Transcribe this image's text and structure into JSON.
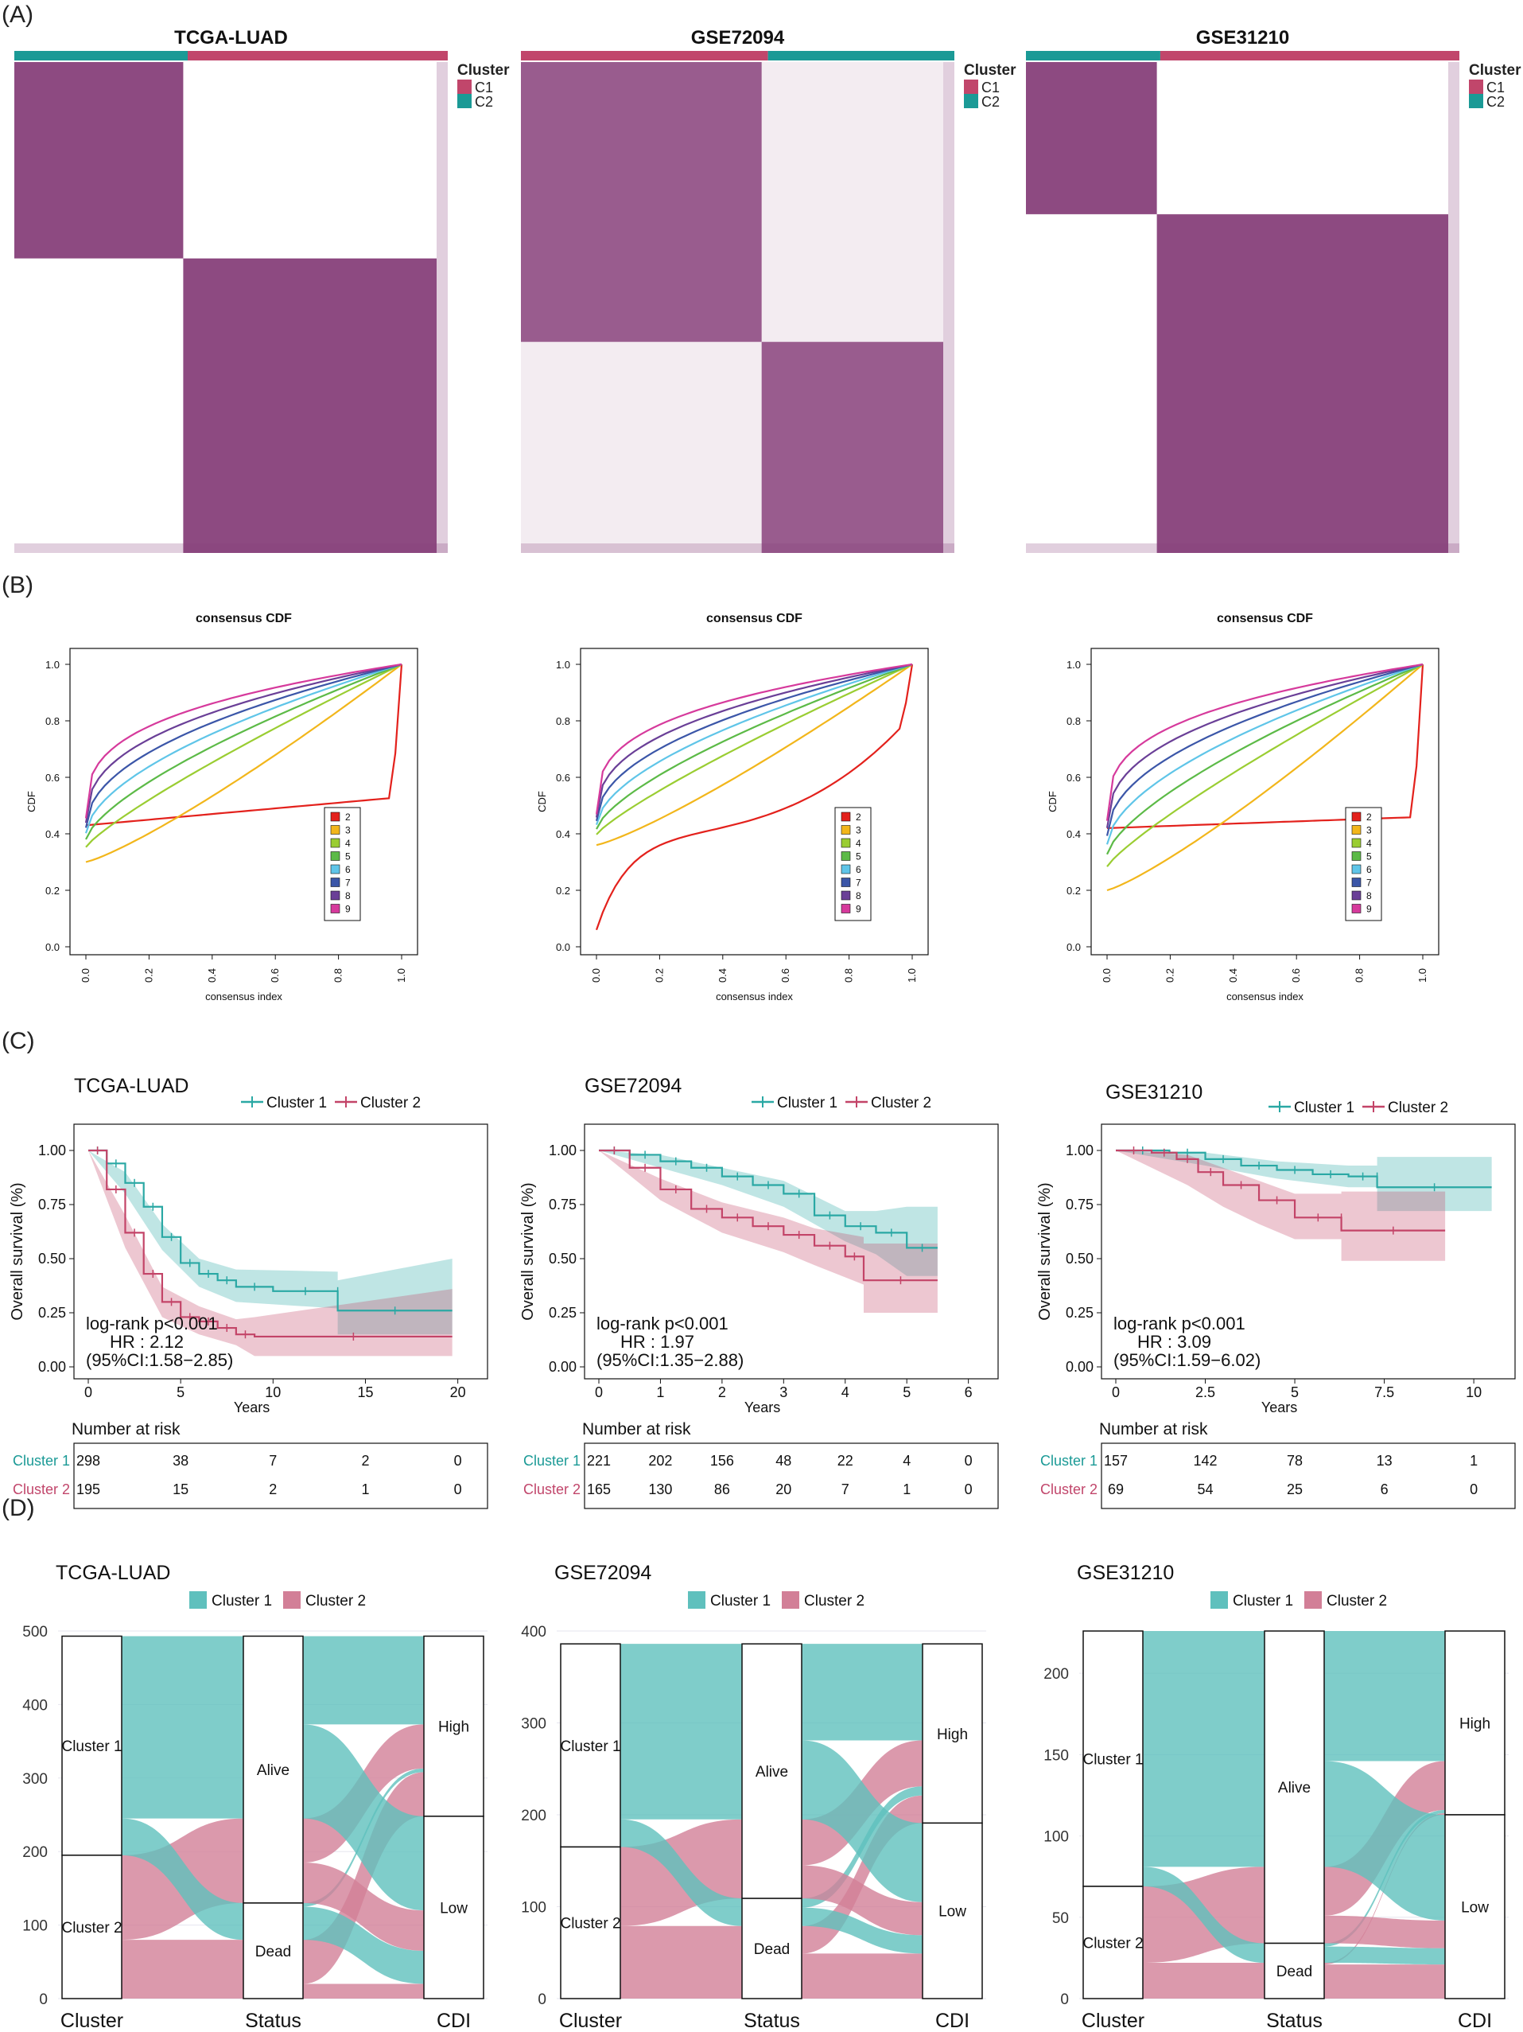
{
  "panel_labels": [
    "(A)",
    "(B)",
    "(C)",
    "(D)"
  ],
  "colors": {
    "c1_red": "#c1466b",
    "c2_teal": "#1b9a96",
    "heat": "#87407a",
    "km_c1": "#2aa8a4",
    "km_c2": "#c34468",
    "alluvial_c1": "#5fc0bd",
    "alluvial_c2": "#d27f97"
  },
  "chart_data": [
    {
      "type": "heatmap",
      "panel": "A",
      "datasets": [
        "TCGA-LUAD",
        "GSE72094",
        "GSE31210"
      ],
      "legend_title": "Cluster",
      "legend_items": [
        "C1",
        "C2"
      ],
      "cluster_sizes": [
        [
          298,
          195
        ],
        [
          221,
          165
        ],
        [
          157,
          69
        ]
      ]
    },
    {
      "type": "line",
      "panel": "B",
      "title": "consensus CDF",
      "xlabel": "consensus index",
      "ylabel": "CDF",
      "xlim": [
        0,
        1
      ],
      "ylim": [
        0,
        1
      ],
      "x_ticks": [
        "0.0",
        "0.2",
        "0.4",
        "0.6",
        "0.8",
        "1.0"
      ],
      "y_ticks": [
        "0.0",
        "0.2",
        "0.4",
        "0.6",
        "0.8",
        "1.0"
      ],
      "legend": [
        "2",
        "3",
        "4",
        "5",
        "6",
        "7",
        "8",
        "9"
      ],
      "series_colors": [
        "#e3211c",
        "#f2b61b",
        "#9acd32",
        "#5cba47",
        "#5fc5e8",
        "#3b56a8",
        "#6a3f97",
        "#d63a9c"
      ],
      "plots": [
        {
          "k2_start": 0.43,
          "k2_flat_end": 0.53,
          "k3_start": 0.3,
          "k9_start": 0.47,
          "k_start_spread": 0.02
        },
        {
          "k2_start": 0.06,
          "k2_flat_end": 0.82,
          "k3_start": 0.36,
          "k9_start": 0.48,
          "k_start_spread": 0.015
        },
        {
          "k2_start": 0.42,
          "k2_flat_end": 0.46,
          "k3_start": 0.2,
          "k9_start": 0.47,
          "k_start_spread": 0.03
        }
      ]
    },
    {
      "type": "line",
      "panel": "C",
      "ylabel": "Overall survival (%)",
      "xlabel": "Years",
      "legend": [
        "Cluster 1",
        "Cluster 2"
      ],
      "risk_title": "Number at risk",
      "risk_labels": [
        "Cluster 1",
        "Cluster 2"
      ],
      "y_ticks": [
        "0.00",
        "0.25",
        "0.50",
        "0.75",
        "1.00"
      ],
      "plots": [
        {
          "title": "TCGA-LUAD",
          "xlim": [
            0,
            20
          ],
          "x_ticks": [
            "0",
            "5",
            "10",
            "15",
            "20"
          ],
          "stats": [
            "log-rank  p<0.001",
            "HR : 2.12",
            "(95%CI:1.58−2.85)"
          ],
          "c1": [
            [
              0,
              1.0
            ],
            [
              1,
              0.94
            ],
            [
              2,
              0.85
            ],
            [
              3,
              0.74
            ],
            [
              4,
              0.6
            ],
            [
              5,
              0.48
            ],
            [
              6,
              0.43
            ],
            [
              7,
              0.4
            ],
            [
              8,
              0.37
            ],
            [
              10,
              0.35
            ],
            [
              13.5,
              0.35
            ],
            [
              13.5,
              0.26
            ],
            [
              19.7,
              0.26
            ]
          ],
          "c1_band": [
            [
              0,
              1,
              1
            ],
            [
              2,
              0.8,
              0.9
            ],
            [
              4,
              0.54,
              0.66
            ],
            [
              6,
              0.37,
              0.5
            ],
            [
              8,
              0.3,
              0.45
            ],
            [
              13.5,
              0.27,
              0.44
            ],
            [
              13.5,
              0.15,
              0.4
            ],
            [
              19.7,
              0.15,
              0.5
            ]
          ],
          "c2": [
            [
              0,
              1.0
            ],
            [
              1,
              0.82
            ],
            [
              2,
              0.62
            ],
            [
              3,
              0.43
            ],
            [
              4,
              0.3
            ],
            [
              5,
              0.23
            ],
            [
              6,
              0.21
            ],
            [
              7,
              0.18
            ],
            [
              8,
              0.15
            ],
            [
              9,
              0.14
            ],
            [
              19.7,
              0.14
            ]
          ],
          "c2_band": [
            [
              0,
              1,
              1
            ],
            [
              2,
              0.55,
              0.7
            ],
            [
              4,
              0.23,
              0.37
            ],
            [
              6,
              0.15,
              0.28
            ],
            [
              8,
              0.1,
              0.22
            ],
            [
              9,
              0.05,
              0.23
            ],
            [
              19.7,
              0.05,
              0.36
            ]
          ],
          "risk_c1": [
            "298",
            "38",
            "7",
            "2",
            "0"
          ],
          "risk_c2": [
            "195",
            "15",
            "2",
            "1",
            "0"
          ]
        },
        {
          "title": "GSE72094",
          "xlim": [
            0,
            6
          ],
          "x_ticks": [
            "0",
            "1",
            "2",
            "3",
            "4",
            "5",
            "6"
          ],
          "stats": [
            "log-rank  p<0.001",
            "HR : 1.97",
            "(95%CI:1.35−2.88)"
          ],
          "c1": [
            [
              0,
              1.0
            ],
            [
              0.5,
              0.98
            ],
            [
              1,
              0.95
            ],
            [
              1.5,
              0.92
            ],
            [
              2,
              0.88
            ],
            [
              2.5,
              0.84
            ],
            [
              3,
              0.8
            ],
            [
              3.5,
              0.7
            ],
            [
              4,
              0.65
            ],
            [
              4.5,
              0.62
            ],
            [
              5,
              0.55
            ],
            [
              5.5,
              0.55
            ]
          ],
          "c1_band": [
            [
              0,
              1,
              1
            ],
            [
              1,
              0.92,
              0.98
            ],
            [
              2,
              0.84,
              0.92
            ],
            [
              3,
              0.74,
              0.86
            ],
            [
              4,
              0.58,
              0.72
            ],
            [
              4.5,
              0.52,
              0.72
            ],
            [
              5,
              0.42,
              0.74
            ],
            [
              5.5,
              0.42,
              0.74
            ]
          ],
          "c2": [
            [
              0,
              1.0
            ],
            [
              0.5,
              0.92
            ],
            [
              1,
              0.82
            ],
            [
              1.5,
              0.73
            ],
            [
              2,
              0.69
            ],
            [
              2.5,
              0.65
            ],
            [
              3,
              0.61
            ],
            [
              3.5,
              0.56
            ],
            [
              4,
              0.51
            ],
            [
              4.3,
              0.48
            ],
            [
              4.3,
              0.4
            ],
            [
              5.5,
              0.4
            ]
          ],
          "c2_band": [
            [
              0,
              1,
              1
            ],
            [
              1,
              0.77,
              0.87
            ],
            [
              2,
              0.62,
              0.76
            ],
            [
              3,
              0.53,
              0.69
            ],
            [
              3.5,
              0.47,
              0.64
            ],
            [
              4.3,
              0.38,
              0.6
            ],
            [
              4.3,
              0.25,
              0.57
            ],
            [
              5.5,
              0.25,
              0.57
            ]
          ],
          "risk_c1": [
            "221",
            "202",
            "156",
            "48",
            "22",
            "4",
            "0"
          ],
          "risk_c2": [
            "165",
            "130",
            "86",
            "20",
            "7",
            "1",
            "0"
          ]
        },
        {
          "title": "GSE31210",
          "xlim": [
            0,
            10
          ],
          "x_ticks": [
            "0",
            "2.5",
            "5",
            "7.5",
            "10"
          ],
          "stats": [
            "log-rank  p<0.001",
            "HR : 3.09",
            "(95%CI:1.59−6.02)"
          ],
          "c1": [
            [
              0,
              1.0
            ],
            [
              1.5,
              0.99
            ],
            [
              2.5,
              0.96
            ],
            [
              3.5,
              0.93
            ],
            [
              4.5,
              0.91
            ],
            [
              5.5,
              0.89
            ],
            [
              6.5,
              0.88
            ],
            [
              7.3,
              0.88
            ],
            [
              7.3,
              0.83
            ],
            [
              10.5,
              0.83
            ]
          ],
          "c1_band": [
            [
              0,
              1,
              1
            ],
            [
              2.5,
              0.93,
              0.99
            ],
            [
              4.5,
              0.87,
              0.95
            ],
            [
              6.5,
              0.83,
              0.93
            ],
            [
              7.3,
              0.83,
              0.93
            ],
            [
              7.3,
              0.72,
              0.97
            ],
            [
              10.5,
              0.72,
              0.97
            ]
          ],
          "c2": [
            [
              0,
              1.0
            ],
            [
              1,
              0.99
            ],
            [
              1.7,
              0.96
            ],
            [
              2.3,
              0.9
            ],
            [
              3,
              0.84
            ],
            [
              4,
              0.77
            ],
            [
              5,
              0.69
            ],
            [
              6.3,
              0.69
            ],
            [
              6.3,
              0.63
            ],
            [
              9.2,
              0.63
            ]
          ],
          "c2_band": [
            [
              0,
              1,
              1
            ],
            [
              2,
              0.84,
              0.98
            ],
            [
              3,
              0.74,
              0.92
            ],
            [
              4,
              0.66,
              0.86
            ],
            [
              5,
              0.59,
              0.8
            ],
            [
              6.3,
              0.59,
              0.8
            ],
            [
              6.3,
              0.49,
              0.81
            ],
            [
              9.2,
              0.49,
              0.81
            ]
          ],
          "risk_c1": [
            "157",
            "142",
            "78",
            "13",
            "1"
          ],
          "risk_c2": [
            "69",
            "54",
            "25",
            "6",
            "0"
          ]
        }
      ]
    },
    {
      "type": "area",
      "panel": "D",
      "legend": [
        "Cluster 1",
        "Cluster 2"
      ],
      "axes": [
        "Cluster",
        "Status",
        "CDI"
      ],
      "node_labels": {
        "cluster": [
          "Cluster 1",
          "Cluster 2"
        ],
        "status": [
          "Alive",
          "Dead"
        ],
        "cdi": [
          "High",
          "Low"
        ]
      },
      "plots": [
        {
          "title": "TCGA-LUAD",
          "ymax": 500,
          "y_ticks": [
            "0",
            "100",
            "200",
            "300",
            "400",
            "500"
          ],
          "c1_alive": 248,
          "c1_dead": 50,
          "c2_alive": 115,
          "c2_dead": 80,
          "c1_alive_high": 120,
          "c1_dead_high": 5,
          "c2_alive_high": 60,
          "c2_dead_high": 60
        },
        {
          "title": "GSE72094",
          "ymax": 400,
          "y_ticks": [
            "0",
            "100",
            "200",
            "300",
            "400"
          ],
          "c1_alive": 191,
          "c1_dead": 30,
          "c2_alive": 86,
          "c2_dead": 79,
          "c1_alive_high": 105,
          "c1_dead_high": 10,
          "c2_alive_high": 50,
          "c2_dead_high": 30
        },
        {
          "title": "GSE31210",
          "ymax": 226,
          "y_ticks": [
            "0",
            "50",
            "100",
            "150",
            "200"
          ],
          "c1_alive": 145,
          "c1_dead": 12,
          "c2_alive": 47,
          "c2_dead": 22,
          "c1_alive_high": 80,
          "c1_dead_high": 2,
          "c2_alive_high": 30,
          "c2_dead_high": 1
        }
      ]
    }
  ]
}
